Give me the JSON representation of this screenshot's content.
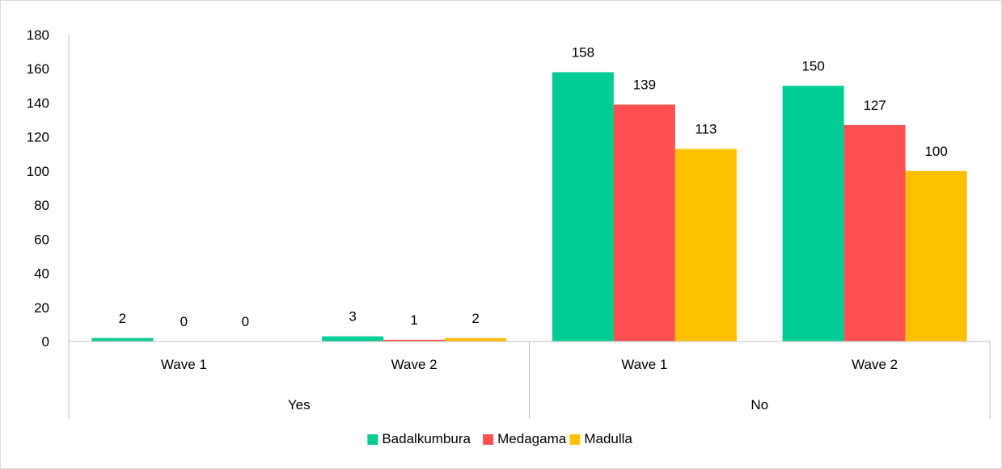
{
  "chart_data": {
    "type": "bar",
    "title": "",
    "xlabel": "",
    "ylabel": "",
    "ylim": [
      0,
      180
    ],
    "yticks": [
      0,
      20,
      40,
      60,
      80,
      100,
      120,
      140,
      160,
      180
    ],
    "grid": false,
    "legend_position": "bottom",
    "groups": [
      {
        "label": "Yes",
        "categories": [
          "Wave 1",
          "Wave 2"
        ]
      },
      {
        "label": "No",
        "categories": [
          "Wave 1",
          "Wave 2"
        ]
      }
    ],
    "categories": [
      "Wave 1",
      "Wave 2",
      "Wave 1",
      "Wave 2"
    ],
    "series": [
      {
        "name": "Badalkumbura",
        "color": "#00CC96",
        "values": [
          2,
          3,
          158,
          150
        ]
      },
      {
        "name": "Medagama",
        "color": "#FF5050",
        "values": [
          0,
          1,
          139,
          127
        ]
      },
      {
        "name": "Madulla",
        "color": "#FFC000",
        "values": [
          0,
          2,
          113,
          100
        ]
      }
    ],
    "axis_color": "#bfbfbf"
  }
}
